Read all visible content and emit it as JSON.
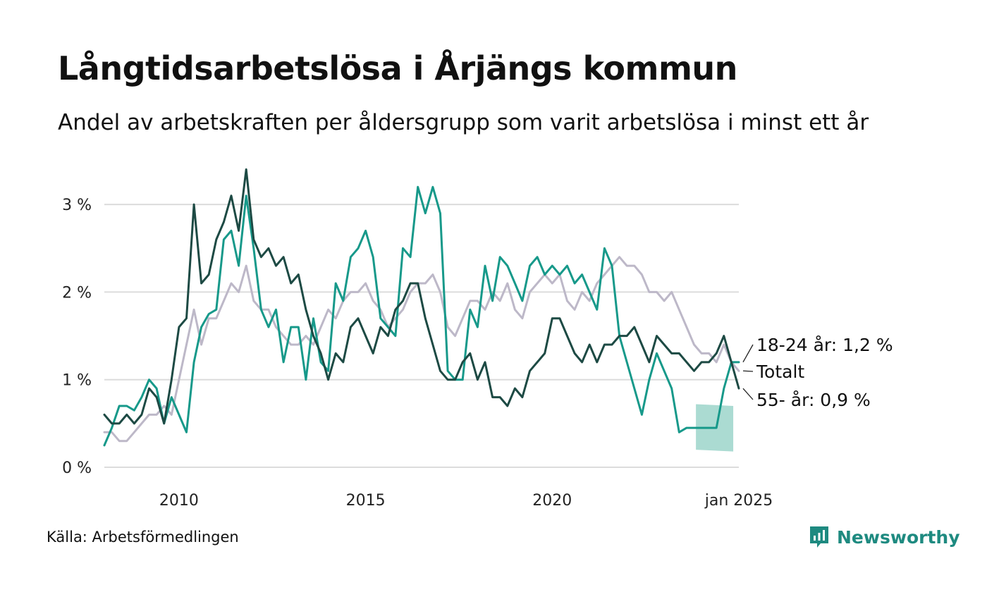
{
  "header": {
    "title": "Långtidsarbetslösa i Årjängs kommun",
    "subtitle": "Andel av arbetskraften per åldersgrupp som varit arbetslösa i minst ett år"
  },
  "footer": {
    "source": "Källa: Arbetsförmedlingen",
    "brand": "Newsworthy"
  },
  "chart_data": {
    "type": "line",
    "title": "Långtidsarbetslösa i Årjängs kommun",
    "subtitle": "Andel av arbetskraften per åldersgrupp som varit arbetslösa i minst ett år",
    "xlabel": "",
    "ylabel": "",
    "x_range": [
      2008.0,
      2025.0
    ],
    "ylim": [
      0,
      3.5
    ],
    "y_ticks": [
      0,
      1,
      2,
      3
    ],
    "y_tick_labels": [
      "0 %",
      "1 %",
      "2 %",
      "3 %"
    ],
    "x_ticks": [
      2010,
      2015,
      2020,
      2025
    ],
    "x_tick_labels": [
      "2010",
      "2015",
      "2020",
      "jan 2025"
    ],
    "grid": true,
    "colors": {
      "total": "#bdb8c8",
      "age_18_24": "#17998a",
      "age_55": "#1d4a44",
      "band": "#a6d9d0",
      "grid": "#dcdcdc",
      "brand": "#1e8a80"
    },
    "series": [
      {
        "key": "total",
        "name": "Totalt",
        "end_label": "Totalt",
        "x": [
          2008.0,
          2008.2,
          2008.4,
          2008.6,
          2008.8,
          2009.0,
          2009.2,
          2009.4,
          2009.6,
          2009.8,
          2010.0,
          2010.2,
          2010.4,
          2010.6,
          2010.8,
          2011.0,
          2011.2,
          2011.4,
          2011.6,
          2011.8,
          2012.0,
          2012.2,
          2012.4,
          2012.6,
          2012.8,
          2013.0,
          2013.2,
          2013.4,
          2013.6,
          2013.8,
          2014.0,
          2014.2,
          2014.4,
          2014.6,
          2014.8,
          2015.0,
          2015.2,
          2015.4,
          2015.6,
          2015.8,
          2016.0,
          2016.2,
          2016.4,
          2016.6,
          2016.8,
          2017.0,
          2017.2,
          2017.4,
          2017.6,
          2017.8,
          2018.0,
          2018.2,
          2018.4,
          2018.6,
          2018.8,
          2019.0,
          2019.2,
          2019.4,
          2019.6,
          2019.8,
          2020.0,
          2020.2,
          2020.4,
          2020.6,
          2020.8,
          2021.0,
          2021.2,
          2021.4,
          2021.6,
          2021.8,
          2022.0,
          2022.2,
          2022.4,
          2022.6,
          2022.8,
          2023.0,
          2023.2,
          2023.4,
          2023.6,
          2023.8,
          2024.0,
          2024.2,
          2024.4,
          2024.6,
          2024.8,
          2025.0
        ],
        "values": [
          0.4,
          0.4,
          0.3,
          0.3,
          0.4,
          0.5,
          0.6,
          0.6,
          0.7,
          0.6,
          1.0,
          1.4,
          1.8,
          1.4,
          1.7,
          1.7,
          1.9,
          2.1,
          2.0,
          2.3,
          1.9,
          1.8,
          1.8,
          1.6,
          1.5,
          1.4,
          1.4,
          1.5,
          1.4,
          1.6,
          1.8,
          1.7,
          1.9,
          2.0,
          2.0,
          2.1,
          1.9,
          1.8,
          1.6,
          1.7,
          1.8,
          2.0,
          2.1,
          2.1,
          2.2,
          2.0,
          1.6,
          1.5,
          1.7,
          1.9,
          1.9,
          1.8,
          2.0,
          1.9,
          2.1,
          1.8,
          1.7,
          2.0,
          2.1,
          2.2,
          2.1,
          2.2,
          1.9,
          1.8,
          2.0,
          1.9,
          2.1,
          2.2,
          2.3,
          2.4,
          2.3,
          2.3,
          2.2,
          2.0,
          2.0,
          1.9,
          2.0,
          1.8,
          1.6,
          1.4,
          1.3,
          1.3,
          1.2,
          1.4,
          1.2,
          1.1
        ]
      },
      {
        "key": "age_18_24",
        "name": "18-24 år",
        "end_label": "18-24 år: 1,2 %",
        "x": [
          2008.0,
          2008.2,
          2008.4,
          2008.6,
          2008.8,
          2009.0,
          2009.2,
          2009.4,
          2009.6,
          2009.8,
          2010.0,
          2010.2,
          2010.4,
          2010.6,
          2010.8,
          2011.0,
          2011.2,
          2011.4,
          2011.6,
          2011.8,
          2012.0,
          2012.2,
          2012.4,
          2012.6,
          2012.8,
          2013.0,
          2013.2,
          2013.4,
          2013.6,
          2013.8,
          2014.0,
          2014.2,
          2014.4,
          2014.6,
          2014.8,
          2015.0,
          2015.2,
          2015.4,
          2015.6,
          2015.8,
          2016.0,
          2016.2,
          2016.4,
          2016.6,
          2016.8,
          2017.0,
          2017.2,
          2017.4,
          2017.6,
          2017.8,
          2018.0,
          2018.2,
          2018.4,
          2018.6,
          2018.8,
          2019.0,
          2019.2,
          2019.4,
          2019.6,
          2019.8,
          2020.0,
          2020.2,
          2020.4,
          2020.6,
          2020.8,
          2021.0,
          2021.2,
          2021.4,
          2021.6,
          2021.8,
          2022.0,
          2022.2,
          2022.4,
          2022.6,
          2022.8,
          2023.0,
          2023.2,
          2023.4,
          2023.6,
          2023.8,
          2024.0,
          2024.2,
          2024.4,
          2024.6,
          2024.8,
          2025.0
        ],
        "values": [
          0.25,
          0.45,
          0.7,
          0.7,
          0.65,
          0.8,
          1.0,
          0.9,
          0.5,
          0.8,
          0.6,
          0.4,
          1.2,
          1.6,
          1.75,
          1.8,
          2.6,
          2.7,
          2.3,
          3.1,
          2.5,
          1.8,
          1.6,
          1.8,
          1.2,
          1.6,
          1.6,
          1.0,
          1.7,
          1.2,
          1.1,
          2.1,
          1.9,
          2.4,
          2.5,
          2.7,
          2.4,
          1.7,
          1.6,
          1.5,
          2.5,
          2.4,
          3.2,
          2.9,
          3.2,
          2.9,
          1.1,
          1.0,
          1.0,
          1.8,
          1.6,
          2.3,
          1.9,
          2.4,
          2.3,
          2.1,
          1.9,
          2.3,
          2.4,
          2.2,
          2.3,
          2.2,
          2.3,
          2.1,
          2.2,
          2.0,
          1.8,
          2.5,
          2.3,
          1.5,
          1.2,
          0.9,
          0.6,
          1.0,
          1.3,
          1.1,
          0.9,
          0.4,
          0.45,
          0.45,
          0.45,
          0.45,
          0.45,
          0.9,
          1.2,
          1.2
        ]
      },
      {
        "key": "age_55",
        "name": "55- år",
        "end_label": "55- år: 0,9 %",
        "x": [
          2008.0,
          2008.2,
          2008.4,
          2008.6,
          2008.8,
          2009.0,
          2009.2,
          2009.4,
          2009.6,
          2009.8,
          2010.0,
          2010.2,
          2010.4,
          2010.6,
          2010.8,
          2011.0,
          2011.2,
          2011.4,
          2011.6,
          2011.8,
          2012.0,
          2012.2,
          2012.4,
          2012.6,
          2012.8,
          2013.0,
          2013.2,
          2013.4,
          2013.6,
          2013.8,
          2014.0,
          2014.2,
          2014.4,
          2014.6,
          2014.8,
          2015.0,
          2015.2,
          2015.4,
          2015.6,
          2015.8,
          2016.0,
          2016.2,
          2016.4,
          2016.6,
          2016.8,
          2017.0,
          2017.2,
          2017.4,
          2017.6,
          2017.8,
          2018.0,
          2018.2,
          2018.4,
          2018.6,
          2018.8,
          2019.0,
          2019.2,
          2019.4,
          2019.6,
          2019.8,
          2020.0,
          2020.2,
          2020.4,
          2020.6,
          2020.8,
          2021.0,
          2021.2,
          2021.4,
          2021.6,
          2021.8,
          2022.0,
          2022.2,
          2022.4,
          2022.6,
          2022.8,
          2023.0,
          2023.2,
          2023.4,
          2023.6,
          2023.8,
          2024.0,
          2024.2,
          2024.4,
          2024.6,
          2024.8,
          2025.0
        ],
        "values": [
          0.6,
          0.5,
          0.5,
          0.6,
          0.5,
          0.6,
          0.9,
          0.8,
          0.5,
          1.0,
          1.6,
          1.7,
          3.0,
          2.1,
          2.2,
          2.6,
          2.8,
          3.1,
          2.7,
          3.4,
          2.6,
          2.4,
          2.5,
          2.3,
          2.4,
          2.1,
          2.2,
          1.8,
          1.5,
          1.3,
          1.0,
          1.3,
          1.2,
          1.6,
          1.7,
          1.5,
          1.3,
          1.6,
          1.5,
          1.8,
          1.9,
          2.1,
          2.1,
          1.7,
          1.4,
          1.1,
          1.0,
          1.0,
          1.2,
          1.3,
          1.0,
          1.2,
          0.8,
          0.8,
          0.7,
          0.9,
          0.8,
          1.1,
          1.2,
          1.3,
          1.7,
          1.7,
          1.5,
          1.3,
          1.2,
          1.4,
          1.2,
          1.4,
          1.4,
          1.5,
          1.5,
          1.6,
          1.4,
          1.2,
          1.5,
          1.4,
          1.3,
          1.3,
          1.2,
          1.1,
          1.2,
          1.2,
          1.3,
          1.5,
          1.2,
          0.9
        ]
      }
    ],
    "band": {
      "series": "age_18_24",
      "x": [
        2023.85,
        2024.85
      ],
      "upper": [
        0.72,
        0.7
      ],
      "lower": [
        0.2,
        0.18
      ]
    }
  }
}
